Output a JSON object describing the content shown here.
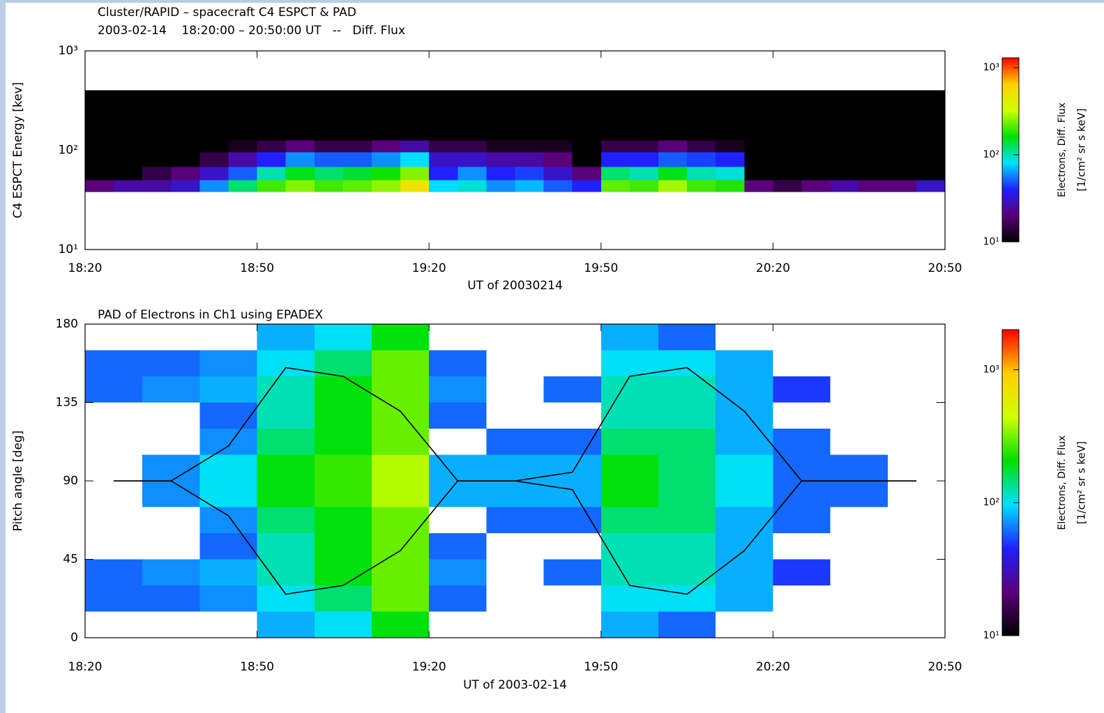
{
  "chart_data": [
    {
      "type": "heatmap",
      "title": "Cluster/RAPID – spacecraft C4 ESPCT & PAD",
      "subtitle": "2003-02-14    18:20:00 – 20:50:00 UT   --   Diff. Flux",
      "xlabel": "UT of 20030214",
      "ylabel": "C4 ESPCT Energy [kev]",
      "xlim": [
        1100,
        1250
      ],
      "xticks": [
        {
          "value": 1100,
          "label": "18:20"
        },
        {
          "value": 1130,
          "label": "18:50"
        },
        {
          "value": 1160,
          "label": "19:20"
        },
        {
          "value": 1190,
          "label": "19:50"
        },
        {
          "value": 1220,
          "label": "20:20"
        },
        {
          "value": 1250,
          "label": "20:50"
        }
      ],
      "ylim": [
        10,
        1000
      ],
      "ylog": true,
      "yticks": [
        {
          "value": 10,
          "label": "10¹"
        },
        {
          "value": 100,
          "label": "10²"
        },
        {
          "value": 1000,
          "label": "10³"
        }
      ],
      "x_bins": [
        1100,
        1105,
        1110,
        1115,
        1120,
        1125,
        1130,
        1135,
        1140,
        1145,
        1150,
        1155,
        1160,
        1165,
        1170,
        1175,
        1180,
        1185,
        1190,
        1195,
        1200,
        1205,
        1210,
        1215,
        1220,
        1225,
        1230,
        1235,
        1240,
        1245,
        1250
      ],
      "y_bins": [
        38,
        50,
        68,
        95,
        125,
        400
      ],
      "z": [
        [
          20,
          25,
          25,
          30,
          60,
          120,
          200,
          250,
          200,
          220,
          260,
          500,
          80,
          90,
          60,
          70,
          50,
          40,
          220,
          200,
          280,
          200,
          180,
          20,
          15,
          20,
          25,
          20,
          20,
          30
        ],
        [
          10,
          10,
          15,
          20,
          30,
          50,
          100,
          150,
          120,
          140,
          170,
          250,
          40,
          60,
          40,
          45,
          30,
          20,
          120,
          100,
          150,
          100,
          90,
          10,
          10,
          10,
          10,
          10,
          10,
          10
        ],
        [
          10,
          10,
          10,
          10,
          15,
          25,
          40,
          60,
          50,
          50,
          60,
          80,
          30,
          30,
          25,
          25,
          20,
          10,
          40,
          40,
          50,
          45,
          40,
          10,
          10,
          10,
          10,
          10,
          10,
          10
        ],
        [
          10,
          10,
          10,
          10,
          10,
          12,
          15,
          20,
          15,
          15,
          20,
          25,
          15,
          15,
          12,
          12,
          12,
          10,
          15,
          15,
          20,
          15,
          12,
          10,
          10,
          10,
          10,
          10,
          10,
          10
        ],
        [
          10,
          10,
          10,
          10,
          10,
          10,
          10,
          10,
          10,
          10,
          10,
          10,
          10,
          10,
          10,
          10,
          10,
          10,
          10,
          10,
          10,
          10,
          10,
          10,
          10,
          10,
          10,
          10,
          10,
          10
        ]
      ],
      "colormap": [
        "#000000",
        "#5a007a",
        "#2020ff",
        "#00e0ff",
        "#00e000",
        "#d0ff00",
        "#ffd000",
        "#ff0000"
      ],
      "colorbar": {
        "lim": [
          10,
          1300
        ],
        "log": true,
        "ticks": [
          {
            "value": 10,
            "label": "10¹"
          },
          {
            "value": 100,
            "label": "10²"
          },
          {
            "value": 1000,
            "label": "10³"
          }
        ],
        "label": "Electrons, Diff. Flux",
        "unit": "[1/cm² sr s keV]"
      }
    },
    {
      "type": "heatmap",
      "title": "PAD of Electrons in Ch1 using EPADEX",
      "xlabel": "UT of 2003-02-14",
      "ylabel": "Pitch angle [deg]",
      "xlim": [
        1100,
        1250
      ],
      "xticks": [
        {
          "value": 1100,
          "label": "18:20"
        },
        {
          "value": 1130,
          "label": "18:50"
        },
        {
          "value": 1160,
          "label": "19:20"
        },
        {
          "value": 1190,
          "label": "19:50"
        },
        {
          "value": 1220,
          "label": "20:20"
        },
        {
          "value": 1250,
          "label": "20:50"
        }
      ],
      "ylim": [
        0,
        180
      ],
      "yticks": [
        0,
        45,
        90,
        135,
        180
      ],
      "x_bins": [
        1100,
        1110,
        1120,
        1130,
        1140,
        1150,
        1160,
        1170,
        1180,
        1190,
        1200,
        1210,
        1220,
        1230,
        1240,
        1250
      ],
      "y_bins": [
        0,
        15,
        30,
        45,
        60,
        75,
        90,
        105,
        120,
        135,
        150,
        165,
        180
      ],
      "z": [
        [
          null,
          null,
          null,
          80,
          100,
          200,
          null,
          null,
          null,
          80,
          60,
          null,
          null,
          null,
          null
        ],
        [
          60,
          60,
          70,
          100,
          150,
          300,
          60,
          null,
          null,
          100,
          100,
          80,
          null,
          null,
          null
        ],
        [
          60,
          70,
          80,
          120,
          200,
          300,
          70,
          null,
          60,
          120,
          120,
          80,
          50,
          null,
          null
        ],
        [
          null,
          null,
          60,
          120,
          200,
          300,
          60,
          null,
          null,
          120,
          120,
          80,
          null,
          null,
          null
        ],
        [
          null,
          null,
          70,
          150,
          200,
          300,
          null,
          60,
          60,
          150,
          150,
          80,
          60,
          null,
          null
        ],
        [
          null,
          70,
          100,
          200,
          250,
          400,
          80,
          80,
          80,
          200,
          150,
          100,
          60,
          60,
          null
        ],
        [
          null,
          70,
          100,
          200,
          250,
          400,
          80,
          80,
          80,
          200,
          150,
          100,
          60,
          60,
          null
        ],
        [
          null,
          null,
          70,
          150,
          200,
          300,
          null,
          60,
          60,
          150,
          150,
          80,
          60,
          null,
          null
        ],
        [
          null,
          null,
          60,
          120,
          200,
          300,
          60,
          null,
          null,
          120,
          120,
          80,
          null,
          null,
          null
        ],
        [
          60,
          70,
          80,
          120,
          200,
          300,
          70,
          null,
          60,
          120,
          120,
          80,
          50,
          null,
          null
        ],
        [
          60,
          60,
          70,
          100,
          150,
          300,
          60,
          null,
          null,
          100,
          100,
          80,
          null,
          null,
          null
        ],
        [
          null,
          null,
          null,
          80,
          100,
          200,
          null,
          null,
          null,
          80,
          60,
          null,
          null,
          null,
          null
        ]
      ],
      "line_x": [
        1105,
        1115,
        1125,
        1135,
        1145,
        1155,
        1165,
        1175,
        1185,
        1195,
        1205,
        1215,
        1225,
        1235,
        1245
      ],
      "lines": [
        {
          "color": "#000000",
          "values": [
            90,
            90,
            110,
            155,
            150,
            130,
            90,
            90,
            95,
            150,
            155,
            130,
            90,
            90,
            90
          ]
        },
        {
          "color": "#000000",
          "values": [
            90,
            90,
            70,
            25,
            30,
            50,
            90,
            90,
            85,
            30,
            25,
            50,
            90,
            90,
            90
          ]
        }
      ],
      "colormap": [
        "#000000",
        "#5a007a",
        "#2020ff",
        "#00e0ff",
        "#00e000",
        "#d0ff00",
        "#ffd000",
        "#ff0000"
      ],
      "colorbar": {
        "lim": [
          10,
          2000
        ],
        "log": true,
        "ticks": [
          {
            "value": 10,
            "label": "10¹"
          },
          {
            "value": 100,
            "label": "10²"
          },
          {
            "value": 1000,
            "label": "10³"
          }
        ],
        "label": "Electrons, Diff. Flux",
        "unit": "[1/cm² sr s keV]"
      }
    }
  ]
}
